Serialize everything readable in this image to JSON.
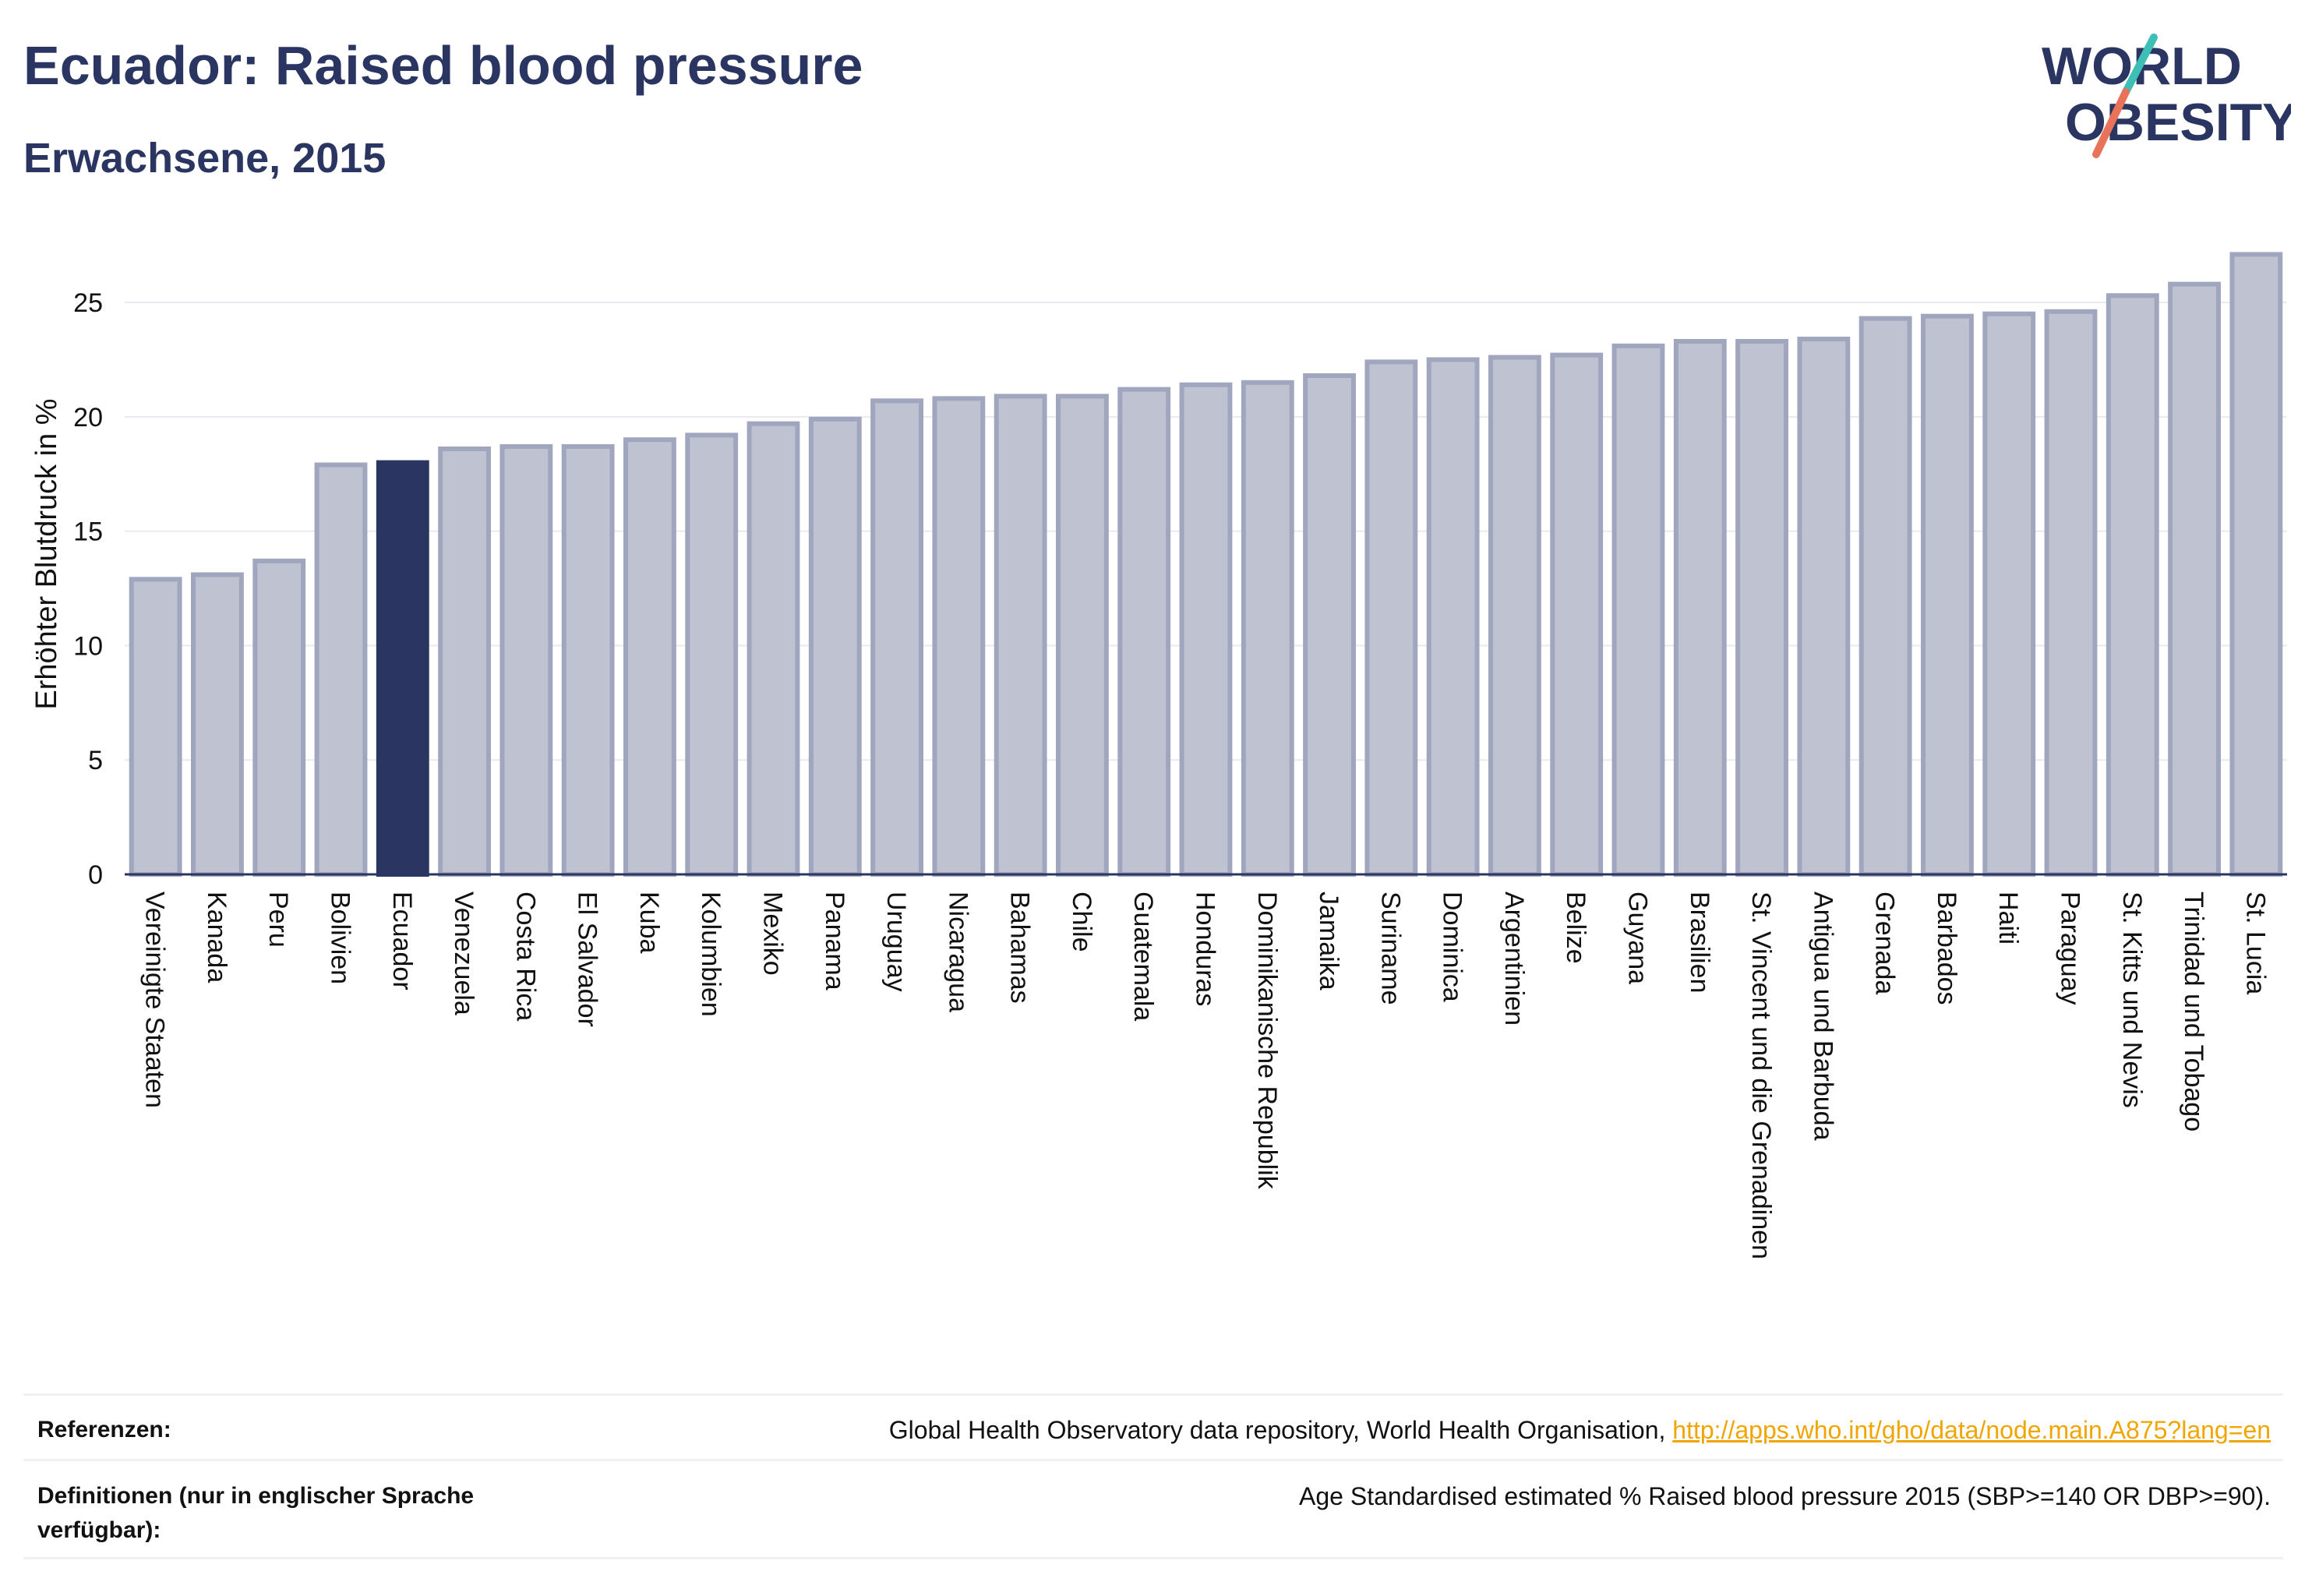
{
  "header": {
    "title": "Ecuador: Raised blood pressure",
    "subtitle": "Erwachsene, 2015",
    "logo_line1": "WORLD",
    "logo_line2": "OBESITY"
  },
  "colors": {
    "highlight": "#2a3561",
    "bar_fill": "#bfc3d1",
    "bar_stroke": "#a0a6bd",
    "text": "#2a3561",
    "logo_teal": "#3dbfb5",
    "logo_coral": "#e8735a",
    "link": "#f0a500"
  },
  "chart_data": {
    "type": "bar",
    "title": "Ecuador: Raised blood pressure",
    "subtitle": "Erwachsene, 2015",
    "ylabel": "Erhöhter Blutdruck in %",
    "xlabel": "",
    "ylim": [
      0,
      28
    ],
    "yticks": [
      0,
      5,
      10,
      15,
      20,
      25
    ],
    "grid": true,
    "legend": "none",
    "highlight_category": "Ecuador",
    "categories": [
      "Vereinigte Staaten",
      "Kanada",
      "Peru",
      "Bolivien",
      "Ecuador",
      "Venezuela",
      "Costa Rica",
      "El Salvador",
      "Kuba",
      "Kolumbien",
      "Mexiko",
      "Panama",
      "Uruguay",
      "Nicaragua",
      "Bahamas",
      "Chile",
      "Guatemala",
      "Honduras",
      "Dominikanische Republik",
      "Jamaika",
      "Suriname",
      "Dominica",
      "Argentinien",
      "Belize",
      "Guyana",
      "Brasilien",
      "St. Vincent und die Grenadinen",
      "Antigua und Barbuda",
      "Grenada",
      "Barbados",
      "Haiti",
      "Paraguay",
      "St. Kitts und Nevis",
      "Trinidad und Tobago",
      "St. Lucia"
    ],
    "values": [
      12.9,
      13.1,
      13.7,
      17.9,
      18.0,
      18.6,
      18.7,
      18.7,
      19.0,
      19.2,
      19.7,
      19.9,
      20.7,
      20.8,
      20.9,
      20.9,
      21.2,
      21.4,
      21.5,
      21.8,
      22.4,
      22.5,
      22.6,
      22.7,
      23.1,
      23.3,
      23.3,
      23.4,
      24.3,
      24.4,
      24.5,
      24.6,
      25.3,
      25.8,
      27.1
    ]
  },
  "footer": {
    "references_label": "Referenzen:",
    "references_text": "Global Health Observatory data repository, World Health Organisation, ",
    "references_link": "http://apps.who.int/gho/data/node.main.A875?lang=en",
    "definitions_label_line1": "Definitionen (nur in englischer Sprache",
    "definitions_label_line2": "verfügbar):",
    "definitions_text": "Age Standardised estimated % Raised blood pressure 2015 (SBP>=140 OR DBP>=90)."
  }
}
